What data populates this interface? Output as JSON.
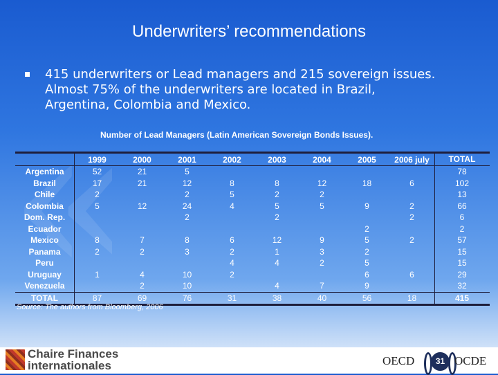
{
  "title": "Underwriters’ recommendations",
  "bullet": "415 underwriters or Lead managers and 215 sovereign issues.\nAlmost 75% of the underwriters are located in Brazil,\nArgentina, Colombia and Mexico.",
  "table": {
    "title": "Number of Lead Managers (Latin American Sovereign Bonds Issues).",
    "columns": [
      "1999",
      "2000",
      "2001",
      "2002",
      "2003",
      "2004",
      "2005",
      "2006 july",
      "TOTAL"
    ],
    "rows": [
      {
        "country": "Argentina",
        "values": [
          "52",
          "21",
          "5",
          "",
          "",
          "",
          "",
          "",
          "78"
        ]
      },
      {
        "country": "Brazil",
        "values": [
          "17",
          "21",
          "12",
          "8",
          "8",
          "12",
          "18",
          "6",
          "102"
        ]
      },
      {
        "country": "Chile",
        "values": [
          "2",
          "",
          "2",
          "5",
          "2",
          "2",
          "",
          "",
          "13"
        ]
      },
      {
        "country": "Colombia",
        "values": [
          "5",
          "12",
          "24",
          "4",
          "5",
          "5",
          "9",
          "2",
          "66"
        ]
      },
      {
        "country": "Dom. Rep.",
        "values": [
          "",
          "",
          "2",
          "",
          "2",
          "",
          "",
          "2",
          "6"
        ]
      },
      {
        "country": "Ecuador",
        "values": [
          "",
          "",
          "",
          "",
          "",
          "",
          "2",
          "",
          "2"
        ]
      },
      {
        "country": "Mexico",
        "values": [
          "8",
          "7",
          "8",
          "6",
          "12",
          "9",
          "5",
          "2",
          "57"
        ]
      },
      {
        "country": "Panama",
        "values": [
          "2",
          "2",
          "3",
          "2",
          "1",
          "3",
          "2",
          "",
          "15"
        ]
      },
      {
        "country": "Peru",
        "values": [
          "",
          "",
          "",
          "4",
          "4",
          "2",
          "5",
          "",
          "15"
        ]
      },
      {
        "country": "Uruguay",
        "values": [
          "1",
          "4",
          "10",
          "2",
          "",
          "",
          "6",
          "6",
          "29"
        ]
      },
      {
        "country": "Venezuela",
        "values": [
          "",
          "2",
          "10",
          "",
          "4",
          "7",
          "9",
          "",
          "32"
        ]
      }
    ],
    "total": {
      "label": "TOTAL",
      "values": [
        "87",
        "69",
        "76",
        "31",
        "38",
        "40",
        "56",
        "18",
        "415"
      ]
    }
  },
  "source": "Source: The authors from Bloomberg, 2006",
  "footer": {
    "brand_line1": "Chaire Finances",
    "brand_line2": "internationales",
    "oecd": "OECD",
    "ocde": "OCDE",
    "page_number": "31"
  }
}
